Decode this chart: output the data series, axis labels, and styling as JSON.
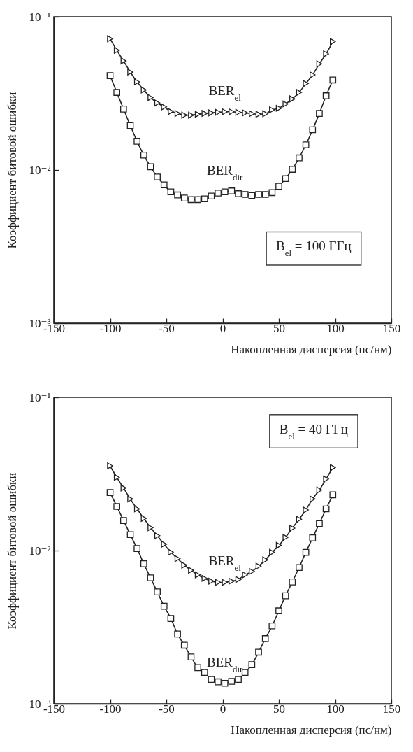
{
  "chart_data": [
    {
      "type": "line",
      "xlabel": "Накопленная дисперсия (пс/нм)",
      "ylabel": "Коэффициент битовой ошибки",
      "log": "y",
      "xlim": [
        -150,
        150
      ],
      "xticks": [
        -150,
        -100,
        -50,
        0,
        50,
        100,
        150
      ],
      "ylim": [
        0.001,
        0.1
      ],
      "yticks": [
        {
          "value": 0.1,
          "label": "10⁻¹"
        },
        {
          "value": 0.01,
          "label": "10⁻²"
        },
        {
          "value": 0.001,
          "label": "10⁻³"
        }
      ],
      "grid": false,
      "line_style": "solid",
      "x": [
        -100,
        -94,
        -88,
        -82,
        -76,
        -70,
        -64,
        -58,
        -52,
        -46,
        -40,
        -34,
        -28,
        -22,
        -16,
        -10,
        -4,
        2,
        8,
        14,
        20,
        26,
        32,
        38,
        44,
        50,
        56,
        62,
        68,
        74,
        80,
        86,
        92,
        98
      ],
      "series": [
        {
          "name": "BER$_{el}$",
          "color": "#222222",
          "marker": "triangle",
          "values": [
            0.0719,
            0.0604,
            0.0515,
            0.0436,
            0.0376,
            0.0333,
            0.0297,
            0.0274,
            0.0258,
            0.0241,
            0.0234,
            0.0228,
            0.0228,
            0.0231,
            0.0234,
            0.0236,
            0.0238,
            0.024,
            0.024,
            0.0238,
            0.0236,
            0.0233,
            0.0231,
            0.0233,
            0.0247,
            0.0253,
            0.027,
            0.0291,
            0.0321,
            0.0367,
            0.0418,
            0.0493,
            0.0573,
            0.069
          ]
        },
        {
          "name": "BER$_{dir}$",
          "color": "#222222",
          "marker": "square",
          "values": [
            0.0413,
            0.0321,
            0.025,
            0.0195,
            0.0154,
            0.0125,
            0.0105,
            0.009,
            0.008,
            0.0072,
            0.00687,
            0.00656,
            0.00641,
            0.00641,
            0.00648,
            0.00676,
            0.00707,
            0.0072,
            0.0073,
            0.007,
            0.00692,
            0.00681,
            0.00692,
            0.00692,
            0.00712,
            0.00782,
            0.00879,
            0.0101,
            0.012,
            0.0146,
            0.0183,
            0.0234,
            0.0305,
            0.0387
          ]
        }
      ],
      "annotations": [
        "B$_{el}$ = 100 ГГц"
      ]
    },
    {
      "type": "line",
      "xlabel": "Накопленная дисперсия (пс/нм)",
      "ylabel": "Коэффициент битовой ошибки",
      "log": "y",
      "xlim": [
        -150,
        150
      ],
      "xticks": [
        -150,
        -100,
        -50,
        0,
        50,
        100,
        150
      ],
      "ylim": [
        0.001,
        0.1
      ],
      "yticks": [
        {
          "value": 0.1,
          "label": "10⁻¹"
        },
        {
          "value": 0.01,
          "label": "10⁻²"
        },
        {
          "value": 0.001,
          "label": "10⁻³"
        }
      ],
      "grid": false,
      "line_style": "solid",
      "x": [
        -100,
        -94,
        -88,
        -82,
        -76,
        -70,
        -64,
        -58,
        -52,
        -46,
        -40,
        -34,
        -28,
        -22,
        -16,
        -10,
        -4,
        2,
        8,
        14,
        20,
        26,
        32,
        38,
        44,
        50,
        56,
        62,
        68,
        74,
        80,
        86,
        92,
        98
      ],
      "series": [
        {
          "name": "BER$_{el}$",
          "color": "#222222",
          "marker": "triangle",
          "values": [
            0.0357,
            0.03,
            0.0256,
            0.0217,
            0.0187,
            0.0162,
            0.0141,
            0.0125,
            0.011,
            0.00976,
            0.00886,
            0.00803,
            0.00744,
            0.00694,
            0.00658,
            0.00631,
            0.0062,
            0.0062,
            0.00631,
            0.00647,
            0.00694,
            0.00731,
            0.00791,
            0.00869,
            0.00973,
            0.0108,
            0.0122,
            0.014,
            0.016,
            0.0184,
            0.0217,
            0.0248,
            0.0293,
            0.0348
          ]
        },
        {
          "name": "BER$_{dir}$",
          "color": "#222222",
          "marker": "square",
          "values": [
            0.0239,
            0.0194,
            0.0157,
            0.0127,
            0.0103,
            0.0082,
            0.00663,
            0.00537,
            0.00433,
            0.0036,
            0.00285,
            0.00241,
            0.00202,
            0.00172,
            0.0016,
            0.00144,
            0.00139,
            0.00136,
            0.0014,
            0.00144,
            0.0016,
            0.0018,
            0.00217,
            0.00266,
            0.00322,
            0.00404,
            0.00507,
            0.00624,
            0.00775,
            0.00973,
            0.0121,
            0.015,
            0.0187,
            0.0231
          ]
        }
      ],
      "annotations": [
        "B$_{el}$ = 40 ГГц"
      ]
    }
  ]
}
